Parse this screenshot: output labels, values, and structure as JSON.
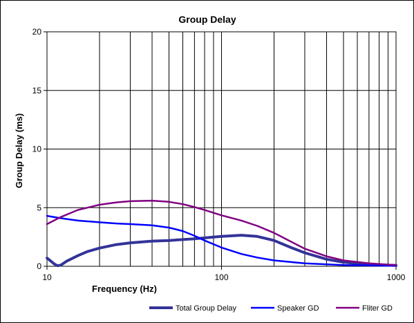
{
  "chart_data": {
    "type": "line",
    "title": "Group Delay",
    "xlabel": "Frequency  (Hz)",
    "ylabel": "Group Delay (ms)",
    "xscale": "log",
    "xlim": [
      10,
      1000
    ],
    "ylim": [
      0,
      20
    ],
    "xticks": [
      "10",
      "100",
      "1000"
    ],
    "yticks": [
      "0",
      "5",
      "10",
      "15",
      "20"
    ],
    "grid": true,
    "legend": "bottom",
    "series": [
      {
        "name": "Total Group Delay",
        "color": "#333399",
        "x": [
          10,
          10.5,
          11,
          11.5,
          12,
          13,
          15,
          17,
          20,
          25,
          30,
          40,
          50,
          70,
          100,
          130,
          160,
          200,
          250,
          300,
          400,
          500,
          700,
          1000
        ],
        "y": [
          0.7,
          0.45,
          0.2,
          0.05,
          0.1,
          0.45,
          0.9,
          1.25,
          1.55,
          1.85,
          2.0,
          2.15,
          2.2,
          2.35,
          2.55,
          2.65,
          2.55,
          2.2,
          1.6,
          1.15,
          0.6,
          0.35,
          0.15,
          0.07
        ]
      },
      {
        "name": "Speaker GD",
        "color": "#0000FF",
        "x": [
          10,
          12,
          15,
          20,
          25,
          30,
          40,
          50,
          60,
          70,
          80,
          100,
          130,
          160,
          200,
          300,
          500,
          1000
        ],
        "y": [
          4.3,
          4.1,
          3.9,
          3.75,
          3.65,
          3.6,
          3.5,
          3.3,
          3.0,
          2.6,
          2.2,
          1.6,
          1.05,
          0.75,
          0.5,
          0.25,
          0.1,
          0.05
        ]
      },
      {
        "name": "Fliter GD",
        "color": "#800080",
        "x": [
          10,
          12,
          15,
          20,
          25,
          30,
          40,
          50,
          60,
          70,
          80,
          100,
          130,
          160,
          200,
          250,
          300,
          400,
          500,
          700,
          1000
        ],
        "y": [
          3.6,
          4.2,
          4.8,
          5.25,
          5.45,
          5.55,
          5.6,
          5.5,
          5.3,
          5.05,
          4.8,
          4.35,
          3.9,
          3.45,
          2.85,
          2.1,
          1.5,
          0.85,
          0.5,
          0.25,
          0.1
        ]
      }
    ]
  }
}
